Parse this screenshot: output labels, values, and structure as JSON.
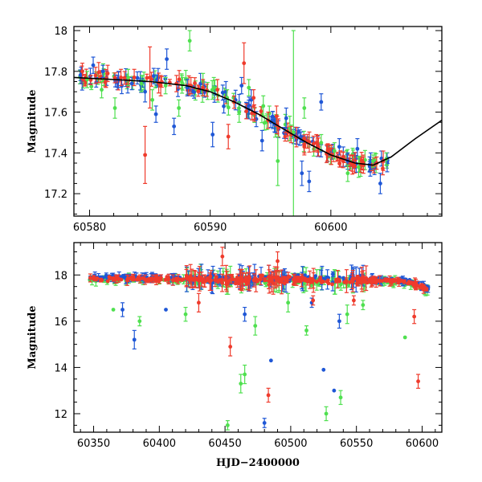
{
  "chart_data": [
    {
      "type": "scatter",
      "panel": "top",
      "title": "",
      "xlabel": "",
      "ylabel": "Magnitude",
      "xlim": [
        60578.7,
        60609.2
      ],
      "ylim": [
        18.02,
        17.09
      ],
      "y_inverted": true,
      "xticks": [
        60580,
        60590,
        60600
      ],
      "xtick_labels": [
        "60580",
        "60590",
        "60600"
      ],
      "yticks": [
        17.2,
        17.4,
        17.6,
        17.8,
        18
      ],
      "ytick_labels": [
        "17.2",
        "17.4",
        "17.6",
        "17.8",
        "18"
      ],
      "grid": false,
      "colors": {
        "blue": "#1f57d6",
        "green": "#4fe04f",
        "red": "#ef3b2c",
        "model": "#000000"
      },
      "model_curve": {
        "x": [
          60578.7,
          60582,
          60585,
          60588,
          60590,
          60592,
          60594,
          60596,
          60598,
          60600,
          60602,
          60603.5,
          60605,
          60607,
          60609.2
        ],
        "y": [
          17.77,
          17.76,
          17.75,
          17.73,
          17.7,
          17.65,
          17.59,
          17.52,
          17.45,
          17.39,
          17.35,
          17.34,
          17.38,
          17.47,
          17.56
        ]
      },
      "series": [
        {
          "color": "blue",
          "points": [
            {
              "x": 60579.3,
              "y": 17.78,
              "err": 0.04
            },
            {
              "x": 60580.3,
              "y": 17.83,
              "err": 0.04
            },
            {
              "x": 60581.1,
              "y": 17.8,
              "err": 0.03
            },
            {
              "x": 60582.4,
              "y": 17.76,
              "err": 0.04
            },
            {
              "x": 60583.5,
              "y": 17.74,
              "err": 0.03
            },
            {
              "x": 60584.6,
              "y": 17.7,
              "err": 0.05
            },
            {
              "x": 60585.5,
              "y": 17.59,
              "err": 0.04
            },
            {
              "x": 60586.4,
              "y": 17.86,
              "err": 0.05
            },
            {
              "x": 60587.0,
              "y": 17.53,
              "err": 0.04
            },
            {
              "x": 60588.1,
              "y": 17.72,
              "err": 0.04
            },
            {
              "x": 60589.2,
              "y": 17.74,
              "err": 0.05
            },
            {
              "x": 60590.2,
              "y": 17.49,
              "err": 0.06
            },
            {
              "x": 60591.3,
              "y": 17.7,
              "err": 0.05
            },
            {
              "x": 60592.6,
              "y": 17.73,
              "err": 0.04
            },
            {
              "x": 60593.4,
              "y": 17.66,
              "err": 0.05
            },
            {
              "x": 60594.3,
              "y": 17.46,
              "err": 0.05
            },
            {
              "x": 60595.4,
              "y": 17.54,
              "err": 0.04
            },
            {
              "x": 60596.3,
              "y": 17.57,
              "err": 0.05
            },
            {
              "x": 60597.6,
              "y": 17.3,
              "err": 0.06
            },
            {
              "x": 60598.2,
              "y": 17.26,
              "err": 0.05
            },
            {
              "x": 60599.2,
              "y": 17.65,
              "err": 0.04
            },
            {
              "x": 60600.7,
              "y": 17.43,
              "err": 0.04
            },
            {
              "x": 60601.4,
              "y": 17.36,
              "err": 0.04
            },
            {
              "x": 60602.2,
              "y": 17.42,
              "err": 0.05
            },
            {
              "x": 60603.3,
              "y": 17.36,
              "err": 0.04
            },
            {
              "x": 60604.1,
              "y": 17.25,
              "err": 0.05
            }
          ]
        },
        {
          "color": "green",
          "points": [
            {
              "x": 60579.8,
              "y": 17.76,
              "err": 0.04
            },
            {
              "x": 60581.0,
              "y": 17.71,
              "err": 0.04
            },
            {
              "x": 60582.1,
              "y": 17.62,
              "err": 0.05
            },
            {
              "x": 60583.2,
              "y": 17.77,
              "err": 0.04
            },
            {
              "x": 60584.3,
              "y": 17.74,
              "err": 0.04
            },
            {
              "x": 60585.2,
              "y": 17.66,
              "err": 0.05
            },
            {
              "x": 60586.3,
              "y": 17.73,
              "err": 0.04
            },
            {
              "x": 60587.4,
              "y": 17.62,
              "err": 0.04
            },
            {
              "x": 60588.3,
              "y": 17.95,
              "err": 0.05
            },
            {
              "x": 60589.4,
              "y": 17.75,
              "err": 0.04
            },
            {
              "x": 60590.3,
              "y": 17.72,
              "err": 0.05
            },
            {
              "x": 60591.4,
              "y": 17.67,
              "err": 0.04
            },
            {
              "x": 60592.4,
              "y": 17.6,
              "err": 0.05
            },
            {
              "x": 60593.2,
              "y": 17.72,
              "err": 0.04
            },
            {
              "x": 60594.4,
              "y": 17.63,
              "err": 0.05
            },
            {
              "x": 60595.6,
              "y": 17.36,
              "err": 0.12
            },
            {
              "x": 60596.6,
              "y": 17.52,
              "err": 0.06
            },
            {
              "x": 60596.9,
              "y": 17.5,
              "err": 0.5
            },
            {
              "x": 60597.8,
              "y": 17.62,
              "err": 0.05
            },
            {
              "x": 60599.2,
              "y": 17.45,
              "err": 0.04
            },
            {
              "x": 60600.3,
              "y": 17.41,
              "err": 0.04
            },
            {
              "x": 60601.4,
              "y": 17.3,
              "err": 0.04
            },
            {
              "x": 60602.3,
              "y": 17.33,
              "err": 0.05
            },
            {
              "x": 60603.5,
              "y": 17.36,
              "err": 0.03
            },
            {
              "x": 60604.6,
              "y": 17.37,
              "err": 0.03
            }
          ]
        },
        {
          "color": "red",
          "points": [
            {
              "x": 60579.4,
              "y": 17.8,
              "err": 0.04
            },
            {
              "x": 60580.5,
              "y": 17.78,
              "err": 0.04
            },
            {
              "x": 60581.5,
              "y": 17.79,
              "err": 0.04
            },
            {
              "x": 60582.6,
              "y": 17.77,
              "err": 0.04
            },
            {
              "x": 60583.7,
              "y": 17.77,
              "err": 0.04
            },
            {
              "x": 60584.6,
              "y": 17.39,
              "err": 0.14
            },
            {
              "x": 60585.0,
              "y": 17.77,
              "err": 0.15
            },
            {
              "x": 60585.9,
              "y": 17.73,
              "err": 0.05
            },
            {
              "x": 60587.2,
              "y": 17.74,
              "err": 0.04
            },
            {
              "x": 60588.4,
              "y": 17.73,
              "err": 0.04
            },
            {
              "x": 60589.4,
              "y": 17.72,
              "err": 0.04
            },
            {
              "x": 60590.6,
              "y": 17.71,
              "err": 0.05
            },
            {
              "x": 60591.5,
              "y": 17.48,
              "err": 0.06
            },
            {
              "x": 60592.8,
              "y": 17.84,
              "err": 0.1
            },
            {
              "x": 60593.6,
              "y": 17.67,
              "err": 0.04
            },
            {
              "x": 60594.8,
              "y": 17.56,
              "err": 0.04
            },
            {
              "x": 60595.5,
              "y": 17.58,
              "err": 0.05
            },
            {
              "x": 60596.7,
              "y": 17.49,
              "err": 0.04
            },
            {
              "x": 60597.8,
              "y": 17.43,
              "err": 0.04
            },
            {
              "x": 60598.8,
              "y": 17.45,
              "err": 0.04
            },
            {
              "x": 60599.7,
              "y": 17.4,
              "err": 0.04
            },
            {
              "x": 60600.8,
              "y": 17.37,
              "err": 0.04
            },
            {
              "x": 60601.8,
              "y": 17.35,
              "err": 0.04
            },
            {
              "x": 60602.7,
              "y": 17.34,
              "err": 0.04
            },
            {
              "x": 60603.8,
              "y": 17.35,
              "err": 0.03
            }
          ]
        }
      ]
    },
    {
      "type": "scatter",
      "panel": "bottom",
      "title": "",
      "xlabel": "HJD−2400000",
      "ylabel": "Magnitude",
      "xlim": [
        60335,
        60615
      ],
      "ylim": [
        19.4,
        11.2
      ],
      "y_inverted": true,
      "xticks": [
        60350,
        60400,
        60450,
        60500,
        60550,
        60600
      ],
      "xtick_labels": [
        "60350",
        "60400",
        "60450",
        "60500",
        "60550",
        "60600"
      ],
      "yticks": [
        12,
        14,
        16,
        18
      ],
      "ytick_labels": [
        "12",
        "14",
        "16",
        "18"
      ],
      "grid": false,
      "colors": {
        "blue": "#1f57d6",
        "green": "#4fe04f",
        "red": "#ef3b2c"
      },
      "baseline": {
        "x": [
          60345,
          60400,
          60450,
          60500,
          60550,
          60580,
          60595,
          60605
        ],
        "y": [
          17.85,
          17.82,
          17.8,
          17.79,
          17.77,
          17.74,
          17.6,
          17.35
        ]
      },
      "series": [
        {
          "color": "blue",
          "outliers": [
            {
              "x": 60381,
              "y": 15.2,
              "err": 0.4
            },
            {
              "x": 60372,
              "y": 16.5,
              "err": 0.3
            },
            {
              "x": 60405,
              "y": 16.5,
              "err": 0.1
            },
            {
              "x": 60465,
              "y": 16.3,
              "err": 0.3
            },
            {
              "x": 60480,
              "y": 11.6,
              "err": 0.2
            },
            {
              "x": 60485,
              "y": 14.3,
              "err": 0.1
            },
            {
              "x": 60525,
              "y": 13.9,
              "err": 0.1
            },
            {
              "x": 60533,
              "y": 13.0,
              "err": 0.1
            },
            {
              "x": 60537,
              "y": 16.0,
              "err": 0.3
            },
            {
              "x": 60516,
              "y": 16.8,
              "err": 0.2
            }
          ]
        },
        {
          "color": "green",
          "outliers": [
            {
              "x": 60385,
              "y": 16.0,
              "err": 0.2
            },
            {
              "x": 60365,
              "y": 16.5,
              "err": 0.1
            },
            {
              "x": 60420,
              "y": 16.3,
              "err": 0.3
            },
            {
              "x": 60452,
              "y": 11.5,
              "err": 0.2
            },
            {
              "x": 60462,
              "y": 13.3,
              "err": 0.4
            },
            {
              "x": 60465,
              "y": 13.7,
              "err": 0.4
            },
            {
              "x": 60473,
              "y": 15.8,
              "err": 0.4
            },
            {
              "x": 60498,
              "y": 16.8,
              "err": 0.4
            },
            {
              "x": 60512,
              "y": 15.6,
              "err": 0.2
            },
            {
              "x": 60527,
              "y": 12.0,
              "err": 0.3
            },
            {
              "x": 60538,
              "y": 12.7,
              "err": 0.3
            },
            {
              "x": 60543,
              "y": 16.3,
              "err": 0.4
            },
            {
              "x": 60587,
              "y": 15.3,
              "err": 0.1
            },
            {
              "x": 60555,
              "y": 16.7,
              "err": 0.2
            }
          ]
        },
        {
          "color": "red",
          "outliers": [
            {
              "x": 60430,
              "y": 16.8,
              "err": 0.4
            },
            {
              "x": 60454,
              "y": 14.9,
              "err": 0.4
            },
            {
              "x": 60483,
              "y": 12.8,
              "err": 0.3
            },
            {
              "x": 60517,
              "y": 16.9,
              "err": 0.2
            },
            {
              "x": 60548,
              "y": 16.9,
              "err": 0.2
            },
            {
              "x": 60594,
              "y": 16.2,
              "err": 0.3
            },
            {
              "x": 60597,
              "y": 13.4,
              "err": 0.3
            },
            {
              "x": 60448,
              "y": 18.8,
              "err": 0.4
            },
            {
              "x": 60490,
              "y": 18.6,
              "err": 0.4
            }
          ]
        }
      ]
    }
  ]
}
